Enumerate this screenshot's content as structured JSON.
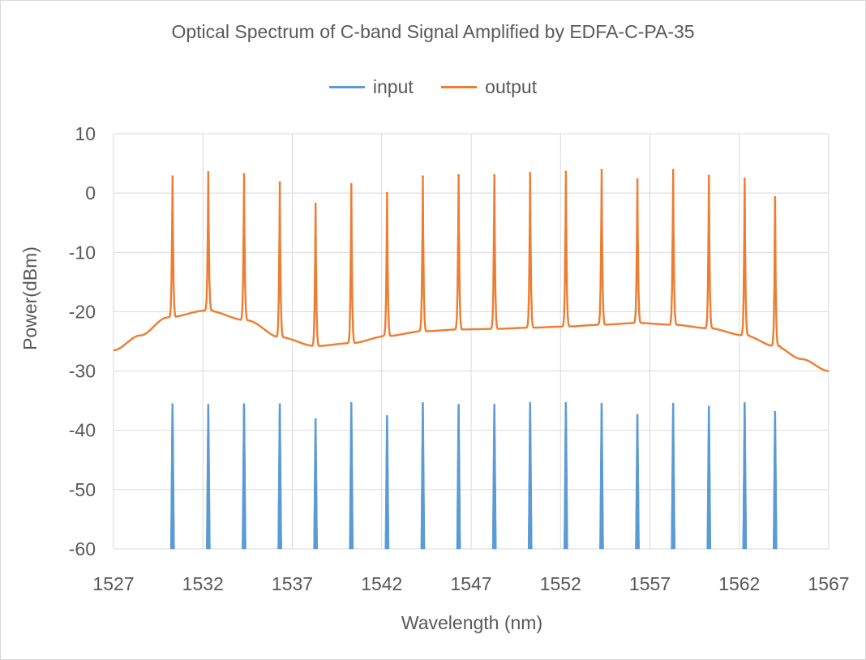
{
  "chart_data": {
    "type": "line",
    "title": "Optical Spectrum of C-band Signal Amplified by EDFA-C-PA-35",
    "xlabel": "Wavelength (nm)",
    "ylabel": "Power(dBm)",
    "xlim": [
      1527,
      1567
    ],
    "ylim": [
      -60,
      10
    ],
    "x_ticks": [
      1527,
      1532,
      1537,
      1542,
      1547,
      1552,
      1557,
      1562,
      1567
    ],
    "y_ticks": [
      10,
      0,
      -10,
      -20,
      -30,
      -40,
      -50,
      -60
    ],
    "grid": true,
    "legend_position": "top",
    "colors": {
      "input": "#5b9bd5",
      "output": "#ed7d31",
      "grid": "#d9d9d9"
    },
    "series": [
      {
        "name": "input",
        "peaks": [
          {
            "x": 1530.3,
            "y": -35.5
          },
          {
            "x": 1532.3,
            "y": -35.6
          },
          {
            "x": 1534.3,
            "y": -35.5
          },
          {
            "x": 1536.3,
            "y": -35.5
          },
          {
            "x": 1538.3,
            "y": -38.0
          },
          {
            "x": 1540.3,
            "y": -35.3
          },
          {
            "x": 1542.3,
            "y": -37.5
          },
          {
            "x": 1544.3,
            "y": -35.3
          },
          {
            "x": 1546.3,
            "y": -35.6
          },
          {
            "x": 1548.3,
            "y": -35.6
          },
          {
            "x": 1550.3,
            "y": -35.3
          },
          {
            "x": 1552.3,
            "y": -35.3
          },
          {
            "x": 1554.3,
            "y": -35.4
          },
          {
            "x": 1556.3,
            "y": -37.3
          },
          {
            "x": 1558.3,
            "y": -35.4
          },
          {
            "x": 1560.3,
            "y": -35.9
          },
          {
            "x": 1562.3,
            "y": -35.3
          },
          {
            "x": 1564.0,
            "y": -36.8
          }
        ]
      },
      {
        "name": "output",
        "baseline": [
          {
            "x": 1527,
            "y": -26.5
          },
          {
            "x": 1528.5,
            "y": -24.0
          },
          {
            "x": 1530,
            "y": -21.0
          },
          {
            "x": 1532.2,
            "y": -19.8
          },
          {
            "x": 1534.5,
            "y": -21.5
          },
          {
            "x": 1536.3,
            "y": -24.3
          },
          {
            "x": 1538.3,
            "y": -25.8
          },
          {
            "x": 1540.3,
            "y": -25.3
          },
          {
            "x": 1542.3,
            "y": -24.1
          },
          {
            "x": 1544.3,
            "y": -23.3
          },
          {
            "x": 1546.3,
            "y": -23.0
          },
          {
            "x": 1548.3,
            "y": -22.9
          },
          {
            "x": 1550.3,
            "y": -22.7
          },
          {
            "x": 1552.3,
            "y": -22.5
          },
          {
            "x": 1554.3,
            "y": -22.2
          },
          {
            "x": 1556.3,
            "y": -21.9
          },
          {
            "x": 1558.3,
            "y": -22.2
          },
          {
            "x": 1560.3,
            "y": -22.8
          },
          {
            "x": 1562.3,
            "y": -24.0
          },
          {
            "x": 1564.0,
            "y": -25.8
          },
          {
            "x": 1565.5,
            "y": -28.0
          },
          {
            "x": 1567,
            "y": -30.0
          }
        ],
        "peaks": [
          {
            "x": 1530.3,
            "y": 2.8
          },
          {
            "x": 1532.3,
            "y": 3.5
          },
          {
            "x": 1534.3,
            "y": 3.2
          },
          {
            "x": 1536.3,
            "y": 1.8
          },
          {
            "x": 1538.3,
            "y": -1.8
          },
          {
            "x": 1540.3,
            "y": 1.5
          },
          {
            "x": 1542.3,
            "y": 0.0
          },
          {
            "x": 1544.3,
            "y": 2.8
          },
          {
            "x": 1546.3,
            "y": 3.0
          },
          {
            "x": 1548.3,
            "y": 3.0
          },
          {
            "x": 1550.3,
            "y": 3.4
          },
          {
            "x": 1552.3,
            "y": 3.6
          },
          {
            "x": 1554.3,
            "y": 3.9
          },
          {
            "x": 1556.3,
            "y": 2.3
          },
          {
            "x": 1558.3,
            "y": 3.9
          },
          {
            "x": 1560.3,
            "y": 2.9
          },
          {
            "x": 1562.3,
            "y": 2.4
          },
          {
            "x": 1564.0,
            "y": -0.7
          }
        ]
      }
    ]
  }
}
